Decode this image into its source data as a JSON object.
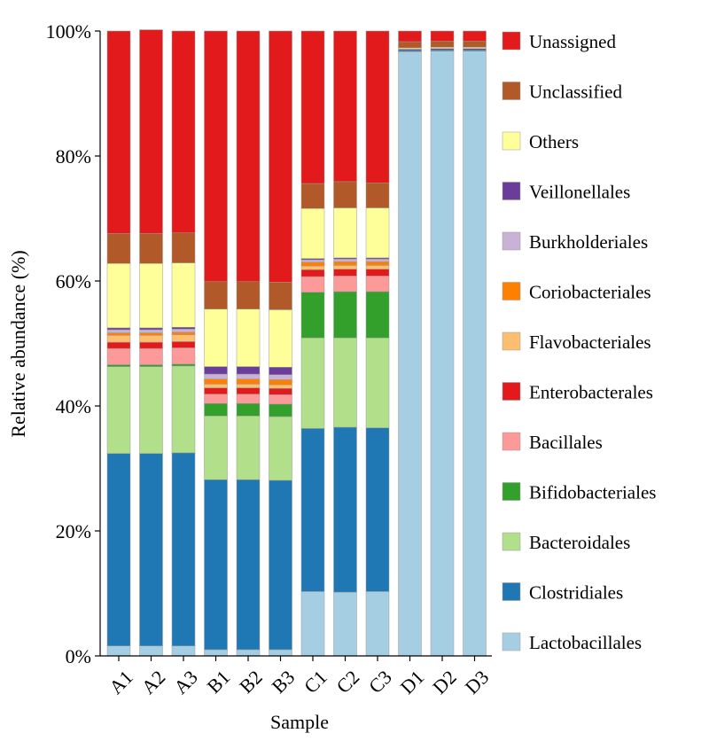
{
  "chart_data": {
    "type": "bar",
    "stacked": true,
    "xlabel": "Sample",
    "ylabel": "Relative abundance (%)",
    "ylim": [
      0,
      100
    ],
    "yticks": [
      0,
      20,
      40,
      60,
      80,
      100
    ],
    "ytick_labels": [
      "0%",
      "20%",
      "40%",
      "60%",
      "80%",
      "100%"
    ],
    "categories": [
      "A1",
      "A2",
      "A3",
      "B1",
      "B2",
      "B3",
      "C1",
      "C2",
      "C3",
      "D1",
      "D2",
      "D3"
    ],
    "legend_position": "right",
    "grid": false,
    "series": [
      {
        "name": "Lactobacillales",
        "color": "#a6cee3",
        "values": [
          1.6,
          1.6,
          1.6,
          1.0,
          1.0,
          1.0,
          10.3,
          10.2,
          10.3,
          96.7,
          96.8,
          96.8
        ]
      },
      {
        "name": "Clostridiales",
        "color": "#1f78b4",
        "values": [
          30.8,
          30.8,
          30.9,
          27.2,
          27.2,
          27.1,
          26.1,
          26.4,
          26.2,
          0.2,
          0.2,
          0.2
        ]
      },
      {
        "name": "Bacteroidales",
        "color": "#b2df8a",
        "values": [
          13.9,
          13.9,
          13.9,
          10.2,
          10.2,
          10.2,
          14.5,
          14.3,
          14.4,
          0.0,
          0.0,
          0.0
        ]
      },
      {
        "name": "Bifidobacteriales",
        "color": "#33a02c",
        "values": [
          0.3,
          0.3,
          0.3,
          2.0,
          2.0,
          2.0,
          7.3,
          7.4,
          7.4,
          0.0,
          0.0,
          0.0
        ]
      },
      {
        "name": "Bacillales",
        "color": "#fb9a99",
        "values": [
          2.6,
          2.6,
          2.6,
          1.5,
          1.5,
          1.5,
          2.5,
          2.5,
          2.5,
          0.0,
          0.0,
          0.0
        ]
      },
      {
        "name": "Enterobacterales",
        "color": "#e31a1c",
        "values": [
          1.0,
          1.0,
          1.0,
          1.0,
          1.0,
          1.0,
          1.1,
          1.1,
          1.1,
          0.0,
          0.0,
          0.0
        ]
      },
      {
        "name": "Flavobacteriales",
        "color": "#fdbf6f",
        "values": [
          1.1,
          1.1,
          1.1,
          0.6,
          0.6,
          0.6,
          0.6,
          0.6,
          0.6,
          0.0,
          0.0,
          0.0
        ]
      },
      {
        "name": "Coriobacteriales",
        "color": "#ff7f00",
        "values": [
          0.4,
          0.4,
          0.4,
          0.8,
          0.8,
          0.8,
          0.6,
          0.6,
          0.6,
          0.0,
          0.0,
          0.0
        ]
      },
      {
        "name": "Burkholderiales",
        "color": "#cab2d6",
        "values": [
          0.5,
          0.5,
          0.5,
          0.8,
          0.8,
          0.8,
          0.4,
          0.4,
          0.4,
          0.0,
          0.0,
          0.0
        ]
      },
      {
        "name": "Veillonellales",
        "color": "#6a3d9a",
        "values": [
          0.3,
          0.3,
          0.3,
          1.2,
          1.2,
          1.2,
          0.2,
          0.2,
          0.2,
          0.2,
          0.2,
          0.2
        ]
      },
      {
        "name": "Others",
        "color": "#ffff99",
        "values": [
          10.3,
          10.3,
          10.3,
          9.2,
          9.2,
          9.2,
          8.0,
          8.0,
          8.0,
          0.2,
          0.2,
          0.2
        ]
      },
      {
        "name": "Unclassified",
        "color": "#b15928",
        "values": [
          4.8,
          4.8,
          4.8,
          4.4,
          4.4,
          4.4,
          4.0,
          4.2,
          4.0,
          1.0,
          1.0,
          1.0
        ]
      },
      {
        "name": "Unassigned",
        "color": "#e31a1c",
        "values": [
          32.4,
          32.6,
          32.3,
          40.1,
          40.1,
          40.2,
          24.4,
          24.1,
          24.3,
          1.7,
          1.6,
          1.6
        ]
      }
    ]
  }
}
